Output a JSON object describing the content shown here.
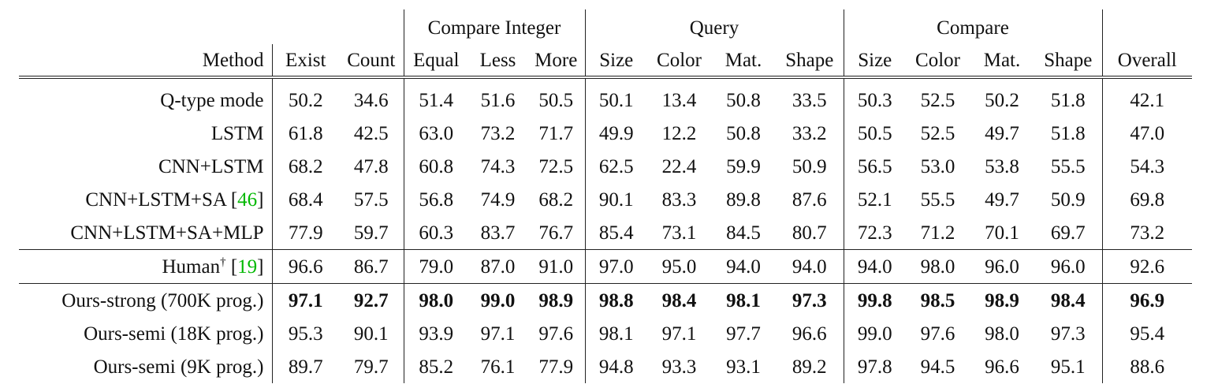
{
  "table": {
    "group_headers": [
      {
        "label": "",
        "span": 3
      },
      {
        "label": "Compare Integer",
        "span": 3
      },
      {
        "label": "Query",
        "span": 4
      },
      {
        "label": "Compare",
        "span": 4
      },
      {
        "label": "",
        "span": 1
      }
    ],
    "columns": [
      "Method",
      "Exist",
      "Count",
      "Equal",
      "Less",
      "More",
      "Size",
      "Color",
      "Mat.",
      "Shape",
      "Size",
      "Color",
      "Mat.",
      "Shape",
      "Overall"
    ],
    "rows": [
      {
        "method": "Q-type mode",
        "cite": "",
        "values": [
          "50.2",
          "34.6",
          "51.4",
          "51.6",
          "50.5",
          "50.1",
          "13.4",
          "50.8",
          "33.5",
          "50.3",
          "52.5",
          "50.2",
          "51.8",
          "42.1"
        ]
      },
      {
        "method": "LSTM",
        "cite": "",
        "values": [
          "61.8",
          "42.5",
          "63.0",
          "73.2",
          "71.7",
          "49.9",
          "12.2",
          "50.8",
          "33.2",
          "50.5",
          "52.5",
          "49.7",
          "51.8",
          "47.0"
        ]
      },
      {
        "method": "CNN+LSTM",
        "cite": "",
        "values": [
          "68.2",
          "47.8",
          "60.8",
          "74.3",
          "72.5",
          "62.5",
          "22.4",
          "59.9",
          "50.9",
          "56.5",
          "53.0",
          "53.8",
          "55.5",
          "54.3"
        ]
      },
      {
        "method": "CNN+LSTM+SA",
        "cite": "46",
        "values": [
          "68.4",
          "57.5",
          "56.8",
          "74.9",
          "68.2",
          "90.1",
          "83.3",
          "89.8",
          "87.6",
          "52.1",
          "55.5",
          "49.7",
          "50.9",
          "69.8"
        ]
      },
      {
        "method": "CNN+LSTM+SA+MLP",
        "cite": "",
        "values": [
          "77.9",
          "59.7",
          "60.3",
          "83.7",
          "76.7",
          "85.4",
          "73.1",
          "84.5",
          "80.7",
          "72.3",
          "71.2",
          "70.1",
          "69.7",
          "73.2"
        ]
      },
      {
        "method": "Human",
        "sup": "†",
        "cite": "19",
        "values": [
          "96.6",
          "86.7",
          "79.0",
          "87.0",
          "91.0",
          "97.0",
          "95.0",
          "94.0",
          "94.0",
          "94.0",
          "98.0",
          "96.0",
          "96.0",
          "92.6"
        ]
      },
      {
        "method": "Ours-strong (700K prog.)",
        "cite": "",
        "values": [
          "97.1",
          "92.7",
          "98.0",
          "99.0",
          "98.9",
          "98.8",
          "98.4",
          "98.1",
          "97.3",
          "99.8",
          "98.5",
          "98.9",
          "98.4",
          "96.9"
        ]
      },
      {
        "method": "Ours-semi (18K prog.)",
        "cite": "",
        "values": [
          "95.3",
          "90.1",
          "93.9",
          "97.1",
          "97.6",
          "98.1",
          "97.1",
          "97.7",
          "96.6",
          "99.0",
          "97.6",
          "98.0",
          "97.3",
          "95.4"
        ]
      },
      {
        "method": "Ours-semi (9K prog.)",
        "cite": "",
        "values": [
          "89.7",
          "79.7",
          "85.2",
          "76.1",
          "77.9",
          "94.8",
          "93.3",
          "93.1",
          "89.2",
          "97.8",
          "94.5",
          "96.6",
          "95.1",
          "88.6"
        ]
      }
    ]
  }
}
